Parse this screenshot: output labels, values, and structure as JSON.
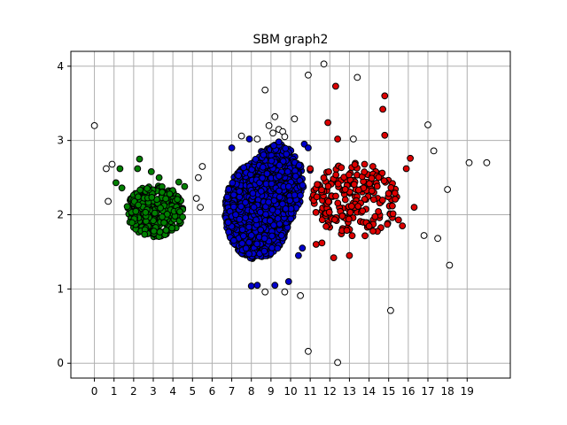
{
  "chart_data": {
    "type": "scatter",
    "title": "SBM graph2",
    "xlabel": "",
    "ylabel": "",
    "xlim": [
      -1.2,
      21.2
    ],
    "ylim": [
      -0.2,
      4.2
    ],
    "x_ticks": [
      0,
      1,
      2,
      3,
      4,
      5,
      6,
      7,
      8,
      9,
      10,
      11,
      12,
      13,
      14,
      15,
      16,
      17,
      18,
      19
    ],
    "y_ticks": [
      0,
      1,
      2,
      3,
      4
    ],
    "grid": true,
    "legend": "none",
    "series": [
      {
        "color": "#008000",
        "clusters": [
          {
            "cx": 3.1,
            "cy": 2.05,
            "rx": 1.45,
            "ry": 0.35,
            "count": 380,
            "seed": 11
          }
        ],
        "points": [
          {
            "x": 2.3,
            "y": 2.75
          },
          {
            "x": 2.2,
            "y": 2.62
          },
          {
            "x": 1.3,
            "y": 2.62
          },
          {
            "x": 1.1,
            "y": 2.43
          },
          {
            "x": 1.4,
            "y": 2.36
          },
          {
            "x": 4.3,
            "y": 2.44
          },
          {
            "x": 4.6,
            "y": 2.38
          },
          {
            "x": 2.9,
            "y": 2.58
          },
          {
            "x": 3.3,
            "y": 2.5
          }
        ]
      },
      {
        "color": "#0000cc",
        "clusters": [
          {
            "cx": 8.3,
            "cy": 2.05,
            "rx": 1.65,
            "ry": 0.65,
            "count": 1700,
            "seed": 23
          },
          {
            "cx": 9.3,
            "cy": 2.4,
            "rx": 1.4,
            "ry": 0.55,
            "count": 450,
            "seed": 37
          }
        ],
        "points": [
          {
            "x": 8.0,
            "y": 1.04
          },
          {
            "x": 8.3,
            "y": 1.05
          },
          {
            "x": 9.2,
            "y": 1.05
          },
          {
            "x": 9.9,
            "y": 1.1
          },
          {
            "x": 10.4,
            "y": 1.45
          },
          {
            "x": 10.6,
            "y": 1.55
          },
          {
            "x": 9.4,
            "y": 2.98
          },
          {
            "x": 10.7,
            "y": 2.95
          },
          {
            "x": 10.9,
            "y": 2.9
          },
          {
            "x": 7.0,
            "y": 2.9
          },
          {
            "x": 7.9,
            "y": 3.02
          },
          {
            "x": 11.0,
            "y": 2.6
          }
        ]
      },
      {
        "color": "#dd0000",
        "clusters": [
          {
            "cx": 13.3,
            "cy": 2.2,
            "rx": 2.2,
            "ry": 0.5,
            "count": 210,
            "seed": 51
          }
        ],
        "points": [
          {
            "x": 14.8,
            "y": 3.6
          },
          {
            "x": 14.7,
            "y": 3.42
          },
          {
            "x": 12.3,
            "y": 3.73
          },
          {
            "x": 11.9,
            "y": 3.24
          },
          {
            "x": 14.8,
            "y": 3.07
          },
          {
            "x": 12.4,
            "y": 3.02
          },
          {
            "x": 16.1,
            "y": 2.76
          },
          {
            "x": 15.9,
            "y": 2.62
          },
          {
            "x": 16.3,
            "y": 2.1
          },
          {
            "x": 15.7,
            "y": 1.85
          },
          {
            "x": 15.5,
            "y": 1.93
          },
          {
            "x": 13.0,
            "y": 1.45
          },
          {
            "x": 12.2,
            "y": 1.42
          },
          {
            "x": 11.6,
            "y": 1.62
          },
          {
            "x": 11.3,
            "y": 1.6
          },
          {
            "x": 14.2,
            "y": 1.78
          },
          {
            "x": 11.0,
            "y": 2.62
          }
        ]
      },
      {
        "color": "#ffffff",
        "clusters": [],
        "points": [
          {
            "x": 0.0,
            "y": 3.2
          },
          {
            "x": 0.6,
            "y": 2.62
          },
          {
            "x": 0.9,
            "y": 2.68
          },
          {
            "x": 0.7,
            "y": 2.18
          },
          {
            "x": 5.5,
            "y": 2.65
          },
          {
            "x": 5.3,
            "y": 2.5
          },
          {
            "x": 5.2,
            "y": 2.22
          },
          {
            "x": 5.4,
            "y": 2.1
          },
          {
            "x": 8.7,
            "y": 3.68
          },
          {
            "x": 9.2,
            "y": 3.32
          },
          {
            "x": 9.4,
            "y": 3.15
          },
          {
            "x": 9.6,
            "y": 3.12
          },
          {
            "x": 9.1,
            "y": 3.1
          },
          {
            "x": 9.7,
            "y": 3.05
          },
          {
            "x": 8.9,
            "y": 3.2
          },
          {
            "x": 7.5,
            "y": 3.06
          },
          {
            "x": 8.3,
            "y": 3.02
          },
          {
            "x": 10.2,
            "y": 3.29
          },
          {
            "x": 10.9,
            "y": 3.88
          },
          {
            "x": 11.7,
            "y": 4.03
          },
          {
            "x": 13.4,
            "y": 3.85
          },
          {
            "x": 13.2,
            "y": 3.02
          },
          {
            "x": 17.0,
            "y": 3.21
          },
          {
            "x": 17.3,
            "y": 2.86
          },
          {
            "x": 19.1,
            "y": 2.7
          },
          {
            "x": 20.0,
            "y": 2.7
          },
          {
            "x": 18.0,
            "y": 2.34
          },
          {
            "x": 16.8,
            "y": 1.72
          },
          {
            "x": 17.5,
            "y": 1.68
          },
          {
            "x": 18.1,
            "y": 1.32
          },
          {
            "x": 15.1,
            "y": 0.71
          },
          {
            "x": 8.7,
            "y": 0.96
          },
          {
            "x": 9.7,
            "y": 0.96
          },
          {
            "x": 10.5,
            "y": 0.91
          },
          {
            "x": 10.9,
            "y": 0.16
          },
          {
            "x": 12.4,
            "y": 0.01
          }
        ]
      }
    ]
  }
}
